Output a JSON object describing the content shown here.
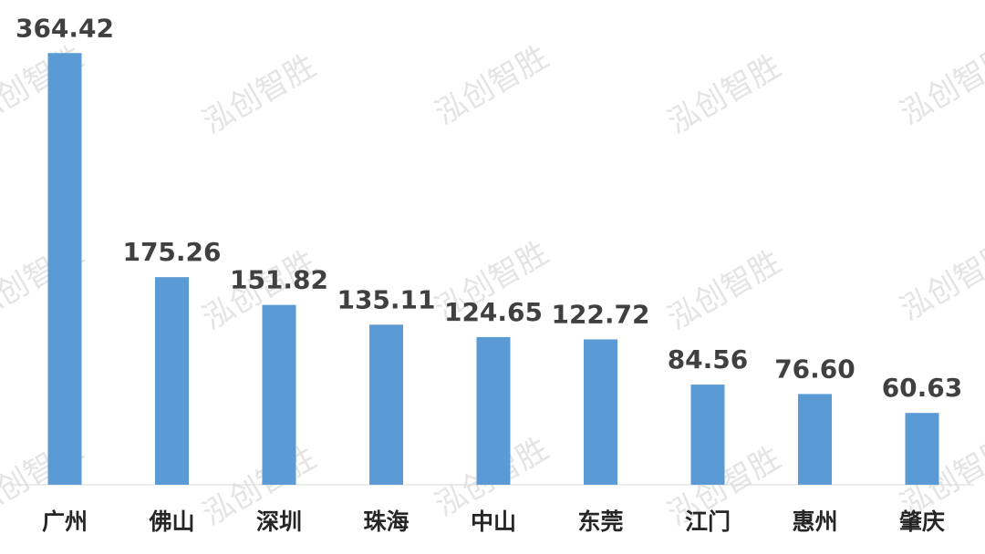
{
  "chart_data": {
    "type": "bar",
    "watermark": "泓创智胜",
    "categories": [
      "广州",
      "佛山",
      "深圳",
      "珠海",
      "中山",
      "东莞",
      "江门",
      "惠州",
      "肇庆"
    ],
    "values": [
      364.42,
      175.26,
      151.82,
      135.11,
      124.65,
      122.72,
      84.56,
      76.6,
      60.63
    ],
    "value_labels": [
      "364.42",
      "175.26",
      "151.82",
      "135.11",
      "124.65",
      "122.72",
      "84.56",
      "76.60",
      "60.63"
    ],
    "color": "#5b9bd5",
    "ylim": [
      0,
      380
    ]
  }
}
